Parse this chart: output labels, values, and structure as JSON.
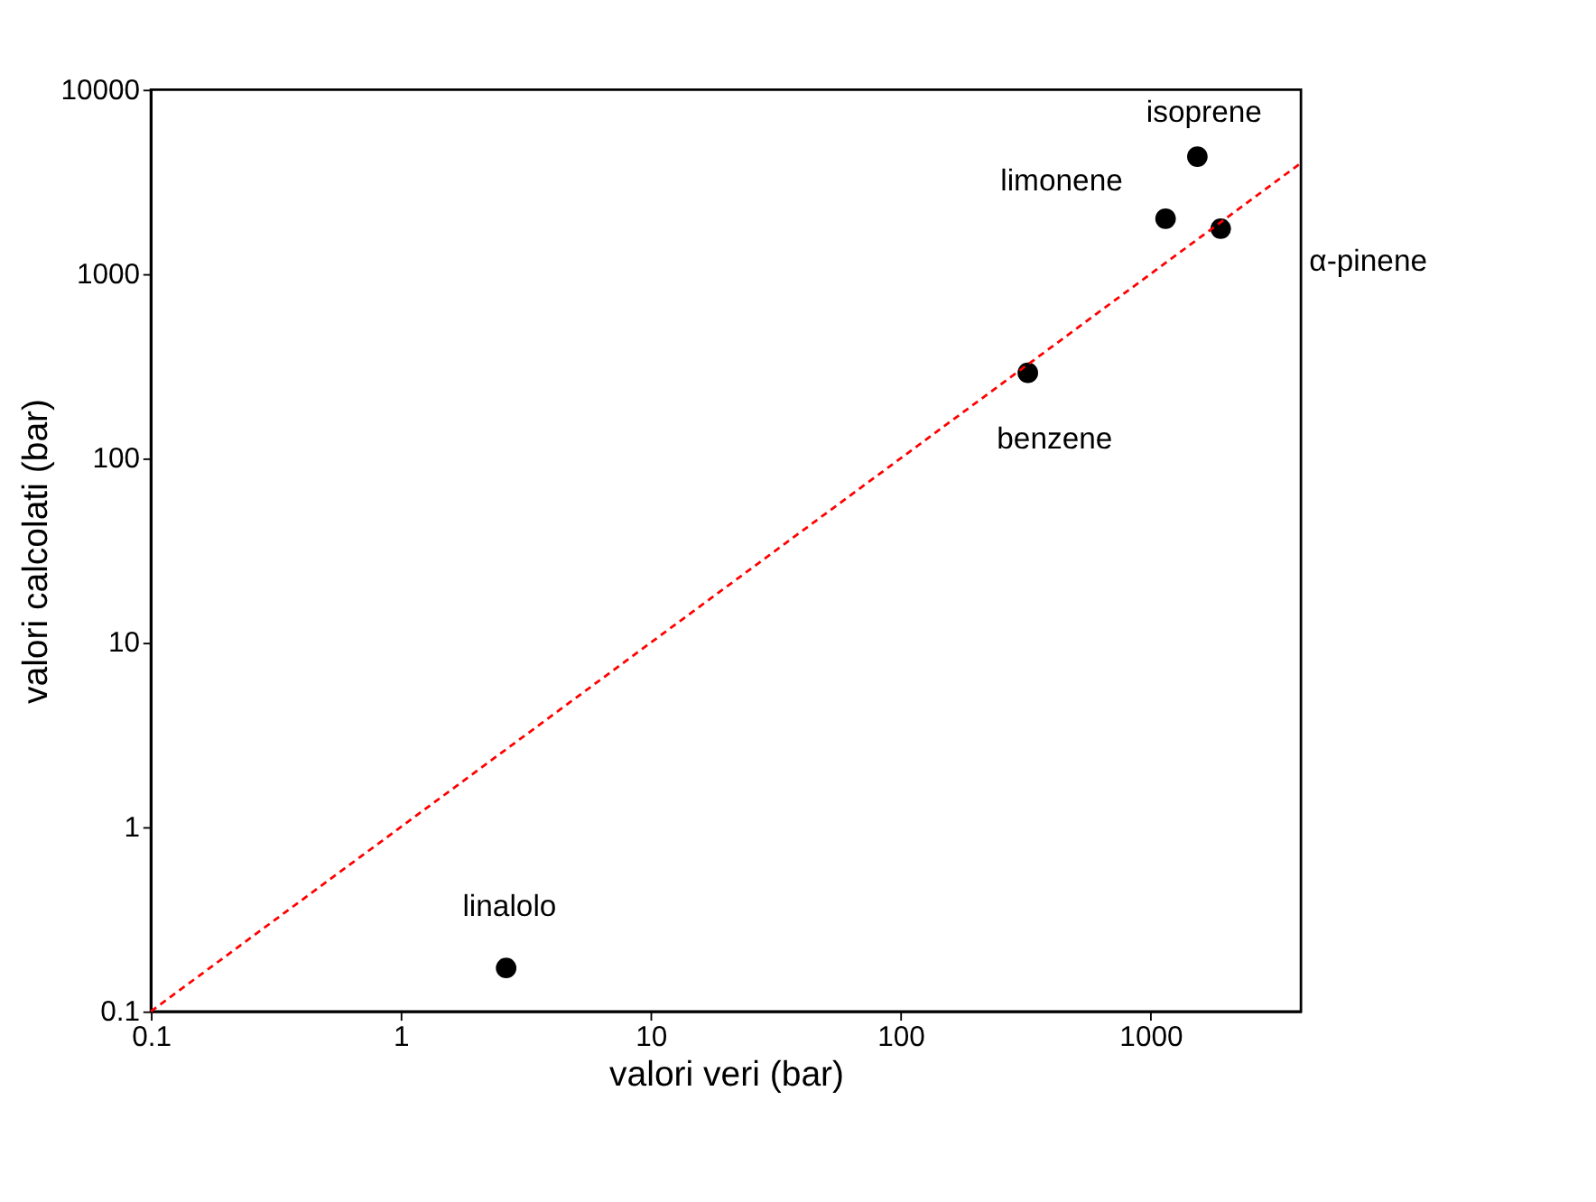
{
  "chart_data": {
    "type": "scatter",
    "xlabel": "valori veri (bar)",
    "ylabel": "valori calcolati (bar)",
    "log": "xy",
    "grid": false,
    "xlim": [
      0.1,
      4000
    ],
    "ylim": [
      0.1,
      10000
    ],
    "xticks": [
      0.1,
      1,
      10,
      100,
      1000
    ],
    "yticks": [
      0.1,
      1,
      10,
      100,
      1000,
      10000
    ],
    "series": [
      {
        "type": "scatter",
        "color": "#000000",
        "marker": "circle",
        "x": [
          2.64,
          323,
          1149,
          1540,
          1910
        ],
        "values": [
          0.172,
          291,
          1995,
          4330,
          1760
        ]
      },
      {
        "type": "line",
        "color": "#ff0000",
        "line_style": "dashed",
        "marker": "none",
        "x": [
          0.1,
          4000
        ],
        "values": [
          0.1,
          4000
        ]
      }
    ],
    "annotations": [
      {
        "text": "linalolo",
        "x": 2.64,
        "y": 0.172
      },
      {
        "text": "benzene",
        "x": 323,
        "y": 291
      },
      {
        "text": "limonene",
        "x": 1149,
        "y": 1995
      },
      {
        "text": "isoprene",
        "x": 1540,
        "y": 4330
      },
      {
        "text": "α-pinene",
        "x": 1910,
        "y": 1760
      }
    ]
  }
}
